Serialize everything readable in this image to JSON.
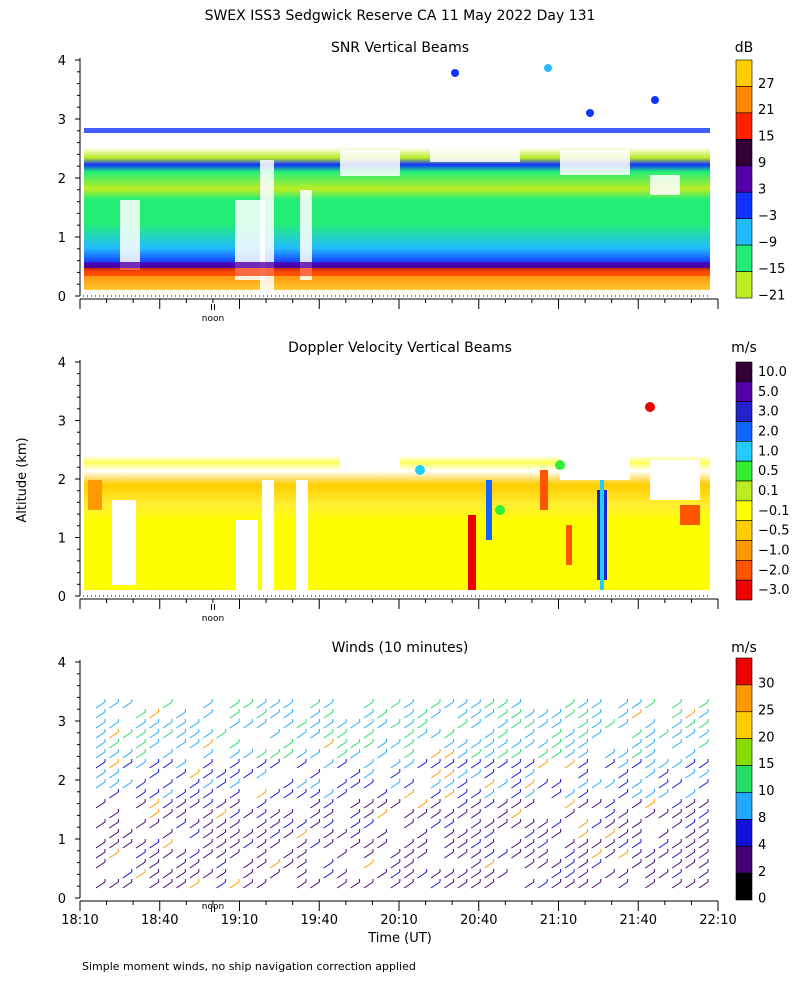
{
  "page": {
    "title": "SWEX ISS3 Sedgwick Reserve CA  11 May 2022 Day 131",
    "ylabel": "Altitude (km)",
    "xlabel": "Time (UT)",
    "noon_label": "noon",
    "footnote": "Simple moment winds, no ship navigation correction applied"
  },
  "chart_data": [
    {
      "type": "heatmap",
      "title": "SNR Vertical Beams",
      "ylabel": "Altitude (km)",
      "ylim": [
        0,
        4
      ],
      "yticks": [
        "0",
        "1",
        "2",
        "3",
        "4"
      ],
      "xlim": [
        "18:10",
        "22:10"
      ],
      "colorbar": {
        "unit": "dB",
        "labels": [
          "27",
          "21",
          "15",
          "9",
          "3",
          "−3",
          "−9",
          "−15",
          "−21"
        ],
        "colors": [
          "#ffcc00",
          "#ff8800",
          "#ff2200",
          "#330033",
          "#5500aa",
          "#1133ff",
          "#22bbff",
          "#22ee77",
          "#bbee22"
        ]
      }
    },
    {
      "type": "heatmap",
      "title": "Doppler Velocity Vertical Beams",
      "ylabel": "Altitude (km)",
      "ylim": [
        0,
        4
      ],
      "yticks": [
        "0",
        "1",
        "2",
        "3",
        "4"
      ],
      "xlim": [
        "18:10",
        "22:10"
      ],
      "colorbar": {
        "unit": "m/s",
        "labels": [
          "10.0",
          "5.0",
          "3.0",
          "2.0",
          "1.0",
          "0.5",
          "0.1",
          "−0.1",
          "−0.5",
          "−1.0",
          "−2.0",
          "−3.0"
        ],
        "colors": [
          "#330033",
          "#5500aa",
          "#2222cc",
          "#1166ff",
          "#22ccff",
          "#33ee33",
          "#bbee22",
          "#ffff00",
          "#ffcc00",
          "#ff9900",
          "#ff5500",
          "#ee0000"
        ]
      }
    },
    {
      "type": "barbs",
      "title": "Winds (10 minutes)",
      "ylabel": "Altitude (km)",
      "ylim": [
        0,
        4
      ],
      "yticks": [
        "0",
        "1",
        "2",
        "3",
        "4"
      ],
      "x": [
        "18:10",
        "18:40",
        "19:10",
        "19:40",
        "20:10",
        "20:40",
        "21:10",
        "21:40",
        "22:10"
      ],
      "colorbar": {
        "unit": "m/s",
        "labels": [
          "30",
          "25",
          "20",
          "15",
          "10",
          "8",
          "4",
          "2",
          "0"
        ],
        "colors": [
          "#ee0000",
          "#ff9900",
          "#ffcc00",
          "#88dd00",
          "#22dd66",
          "#22aaff",
          "#1111dd",
          "#440077",
          "#000000"
        ]
      }
    }
  ]
}
